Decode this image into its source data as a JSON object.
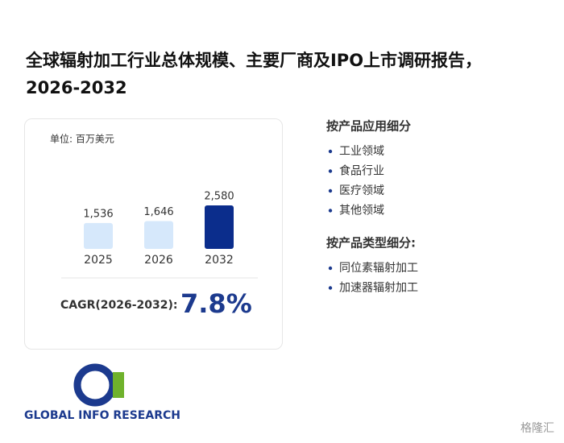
{
  "title": "全球辐射加工行业总体规模、主要厂商及IPO上市调研报告，2026-2032",
  "chart_data": {
    "type": "bar",
    "subtitle": "单位: 百万美元",
    "categories": [
      "2025",
      "2026",
      "2032"
    ],
    "values": [
      1536,
      1646,
      2580
    ],
    "value_labels": [
      "1,536",
      "1,646",
      "2,580"
    ],
    "colors": [
      "#d6e8fb",
      "#d6e8fb",
      "#0b2d8c"
    ]
  },
  "cagr": {
    "label": "CAGR(2026-2032):",
    "value": "7.8%"
  },
  "segments": [
    {
      "heading": "按产品应用细分",
      "items": [
        "工业领域",
        "食品行业",
        "医疗领域",
        "其他领域"
      ]
    },
    {
      "heading": "按产品类型细分:",
      "items": [
        "同位素辐射加工",
        "加速器辐射加工"
      ]
    }
  ],
  "logo": {
    "text": "GLOBAL INFO RESEARCH"
  },
  "watermark": "格隆汇"
}
